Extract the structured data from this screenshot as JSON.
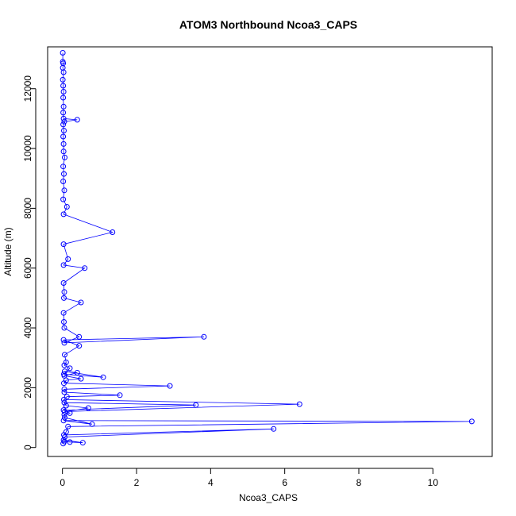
{
  "chart_data": {
    "type": "scatter",
    "title": "ATOM3 Northbound Ncoa3_CAPS",
    "xlabel": "Ncoa3_CAPS",
    "ylabel": "Altitude (m)",
    "xlim": [
      -0.4,
      11.6
    ],
    "ylim": [
      -300,
      13400
    ],
    "x_ticks": [
      0,
      2,
      4,
      6,
      8,
      10
    ],
    "y_ticks": [
      0,
      2000,
      4000,
      6000,
      8000,
      10000,
      12000
    ],
    "x_tick_labels": [
      "0",
      "2",
      "4",
      "6",
      "8",
      "10"
    ],
    "y_tick_labels": [
      "0",
      "2000",
      "4000",
      "6000",
      "8000",
      "10000",
      "12000"
    ],
    "grid": false,
    "series": [
      {
        "color": "#0000ff",
        "marker": "open-circle",
        "line": true,
        "x": [
          0.02,
          0.05,
          0.2,
          0.55,
          0.03,
          0.06,
          5.7,
          0.04,
          0.1,
          0.15,
          11.05,
          0.03,
          0.8,
          0.06,
          0.05,
          0.2,
          0.03,
          3.6,
          0.05,
          0.1,
          0.7,
          0.06,
          6.4,
          0.04,
          0.12,
          1.55,
          0.05,
          0.05,
          2.9,
          0.04,
          0.1,
          0.5,
          0.05,
          0.4,
          0.06,
          1.1,
          0.04,
          0.2,
          0.05,
          0.1,
          0.06,
          0.45,
          0.03,
          3.82,
          0.05,
          0.45,
          0.05,
          0.04,
          0.03,
          0.5,
          0.04,
          0.05,
          0.03,
          0.6,
          0.03,
          0.15,
          0.03,
          1.35,
          0.03,
          0.12,
          0.02,
          0.05,
          0.02,
          0.04,
          0.02,
          0.06,
          0.03,
          0.03,
          0.02,
          0.04,
          0.02,
          0.05,
          0.4,
          0.03,
          0.02,
          0.03,
          0.02,
          0.03,
          0.02,
          0.01,
          0.03,
          0.01,
          0.02,
          0.01,
          0.01
        ],
        "y": [
          130,
          200,
          180,
          160,
          250,
          350,
          620,
          420,
          520,
          700,
          870,
          900,
          780,
          1000,
          1100,
          1150,
          1250,
          1420,
          1500,
          1400,
          1320,
          1200,
          1450,
          1600,
          1700,
          1750,
          1850,
          1950,
          2060,
          2150,
          2250,
          2300,
          2400,
          2500,
          2550,
          2350,
          2450,
          2650,
          2750,
          2850,
          3100,
          3400,
          3600,
          3700,
          3500,
          3700,
          4000,
          4200,
          4500,
          4850,
          5000,
          5200,
          5500,
          6000,
          6100,
          6300,
          6800,
          7200,
          7800,
          8050,
          8300,
          8600,
          8900,
          9150,
          9400,
          9700,
          9900,
          10150,
          10400,
          10600,
          10800,
          10900,
          10960,
          11000,
          11200,
          11400,
          11700,
          11900,
          12100,
          12300,
          12550,
          12700,
          12850,
          12900,
          13200
        ]
      }
    ]
  }
}
